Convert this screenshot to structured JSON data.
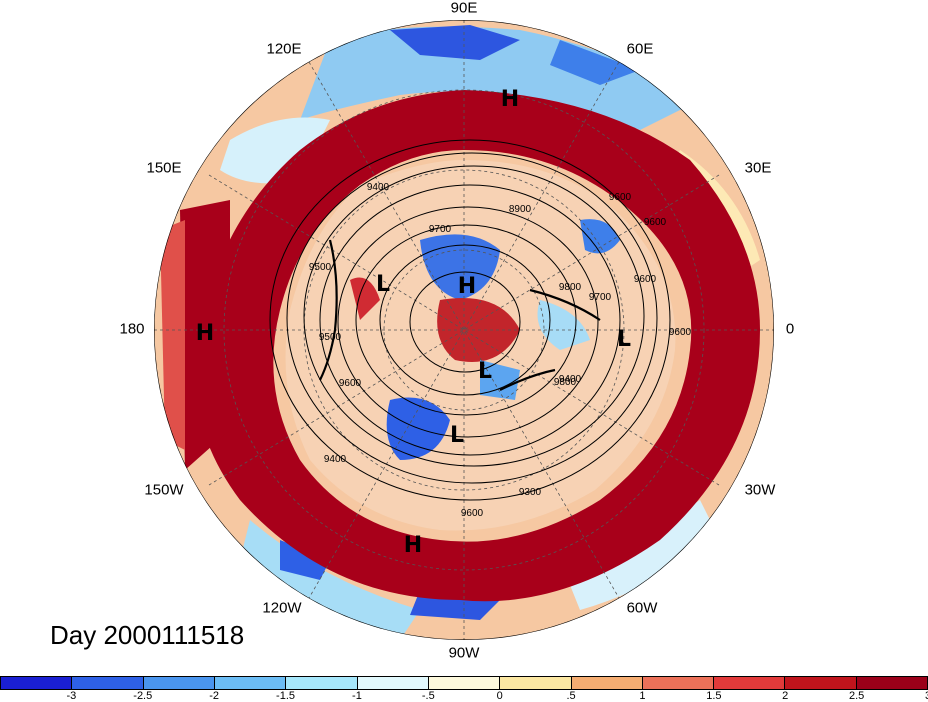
{
  "title": "Day 2000111518",
  "longitude_labels": {
    "top": "90E",
    "upper_left": "120E",
    "upper_right": "60E",
    "left_upper": "150E",
    "right_upper": "30E",
    "left": "180",
    "right": "0",
    "left_lower": "150W",
    "right_lower": "30W",
    "lower_left": "120W",
    "lower_right": "60W",
    "bottom": "90W"
  },
  "pressure_centers": [
    "H",
    "H",
    "L",
    "H",
    "L",
    "L",
    "L",
    "H",
    "L"
  ],
  "contour_labels": [
    "9400",
    "9500",
    "9600",
    "9700",
    "8900",
    "9800",
    "9600",
    "9600",
    "9400",
    "9500",
    "9600",
    "9300",
    "9800",
    "9700",
    "9400",
    "9600",
    "9600"
  ],
  "colorbar": {
    "colors": [
      "#1a1fd3",
      "#2e60e6",
      "#4a95ee",
      "#6cbdf5",
      "#a6e7fb",
      "#e2f9fd",
      "#fdf9dd",
      "#fbe7a2",
      "#f5ad72",
      "#ec7159",
      "#e23a3a",
      "#c0141c",
      "#9b0019"
    ],
    "labels": [
      "-3",
      "-2.5",
      "-2",
      "-1.5",
      "-1",
      "-.5",
      "0",
      ".5",
      "1",
      "1.5",
      "2",
      "2.5",
      "3"
    ]
  }
}
